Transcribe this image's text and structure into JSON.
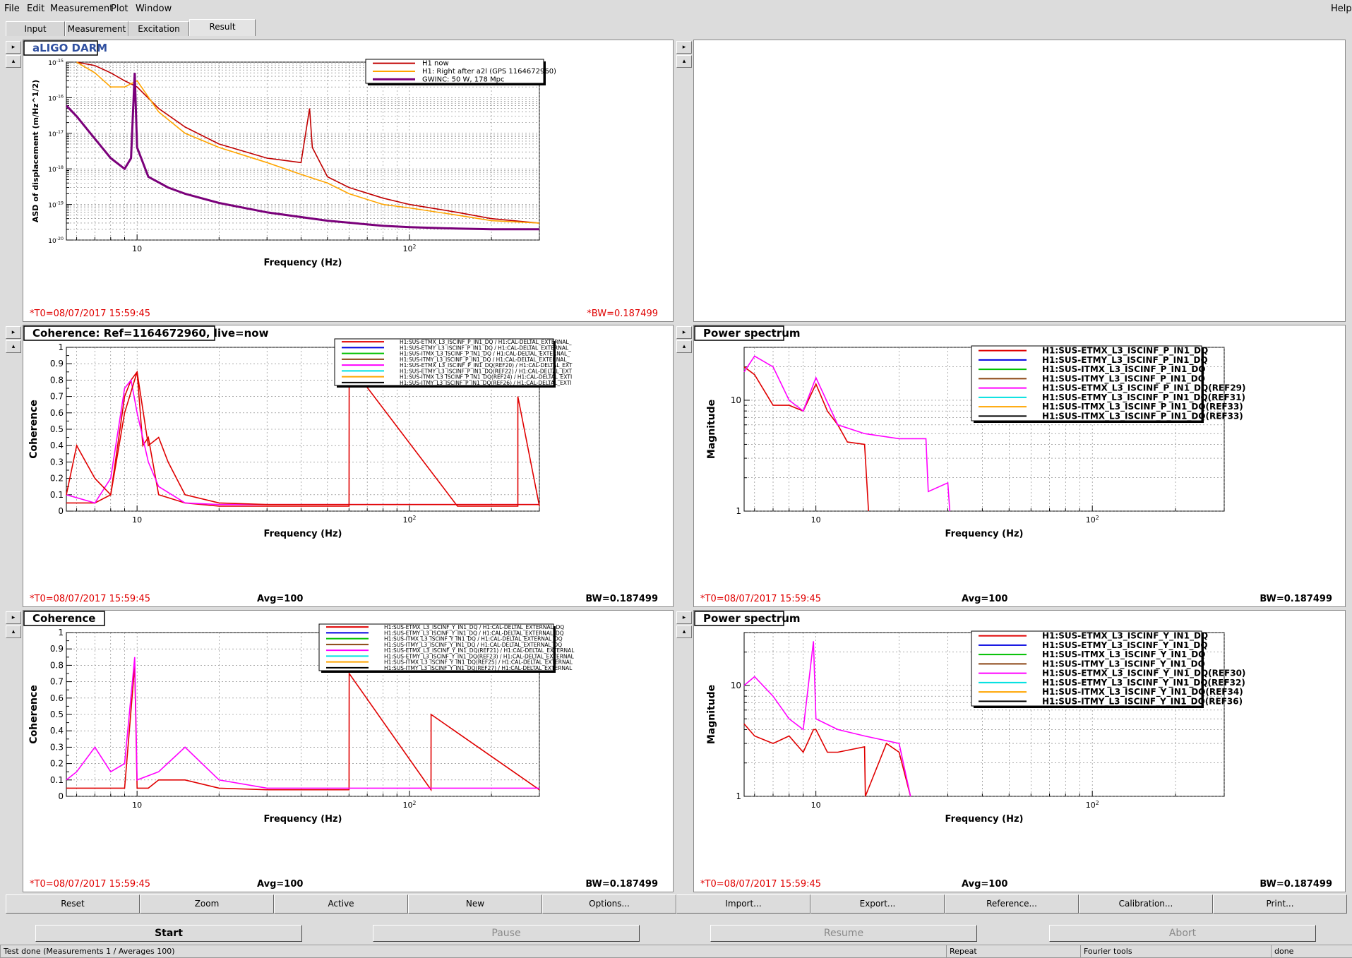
{
  "menu": {
    "file": "File",
    "edit": "Edit",
    "measurement": "Measurement",
    "plot": "Plot",
    "window": "Window",
    "help": "Help"
  },
  "tabs": [
    "Input",
    "Measurement",
    "Excitation",
    "Result"
  ],
  "panels": [
    {
      "title": "aLIGO DARM",
      "xlabel": "Frequency (Hz)",
      "ylabel": "ASD of displacement (m/Hz^1/2)",
      "t0": "*T0=08/07/2017 15:59:45",
      "avg": "",
      "bw": "*BW=0.187499",
      "legend": [
        "H1 now",
        "H1: Right after a2l (GPS 1164672960)",
        "GWINC: 50 W, 178 Mpc"
      ],
      "yticks": [
        "10^-15",
        "10^-16",
        "10^-17",
        "10^-18",
        "10^-19",
        "10^-20"
      ],
      "xticks": [
        "10",
        "10^2"
      ]
    },
    {
      "title": "Coherence: Ref=1164672960, live=now",
      "xlabel": "Frequency (Hz)",
      "ylabel": "Coherence",
      "t0": "*T0=08/07/2017 15:59:45",
      "avg": "Avg=100",
      "bw": "BW=0.187499",
      "legend": [
        "H1:SUS-ETMX_L3_ISCINF_P_IN1_DQ / H1:CAL-DELTAL_EXTERNAL_",
        "H1:SUS-ETMY_L3_ISCINF_P_IN1_DQ / H1:CAL-DELTAL_EXTERNAL_",
        "H1:SUS-ITMX_L3_ISCINF_P_IN1_DQ / H1:CAL-DELTAL_EXTERNAL_",
        "H1:SUS-ITMY_L3_ISCINF_P_IN1_DQ / H1:CAL-DELTAL_EXTERNAL_",
        "H1:SUS-ETMX_L3_ISCINF_P_IN1_DQ(REF20) / H1:CAL-DELTAL_EXT",
        "H1:SUS-ETMY_L3_ISCINF_P_IN1_DQ(REF22) / H1:CAL-DELTAL_EXT",
        "H1:SUS-ITMX_L3_ISCINF_P_IN1_DQ(REF24) / H1:CAL-DELTAL_EXTI",
        "H1:SUS-ITMY_L3_ISCINF_P_IN1_DQ(REF26) / H1:CAL-DELTAL_EXTI"
      ],
      "yticks": [
        "1",
        "0.9",
        "0.8",
        "0.7",
        "0.6",
        "0.5",
        "0.4",
        "0.3",
        "0.2",
        "0.1",
        "0"
      ],
      "xticks": [
        "10",
        "10^2"
      ]
    },
    {
      "title": "Power spectrum",
      "xlabel": "Frequency (Hz)",
      "ylabel": "Magnitude",
      "t0": "*T0=08/07/2017 15:59:45",
      "avg": "Avg=100",
      "bw": "BW=0.187499",
      "legend": [
        "H1:SUS-ETMX_L3_ISCINF_P_IN1_DQ",
        "H1:SUS-ETMY_L3_ISCINF_P_IN1_DQ",
        "H1:SUS-ITMX_L3_ISCINF_P_IN1_DQ",
        "H1:SUS-ITMY_L3_ISCINF_P_IN1_DQ",
        "H1:SUS-ETMX_L3_ISCINF_P_IN1_DQ(REF29)",
        "H1:SUS-ETMY_L3_ISCINF_P_IN1_DQ(REF31)",
        "H1:SUS-ITMX_L3_ISCINF_P_IN1_DQ(REF33)",
        "H1:SUS-ITMX_L3_ISCINF_P_IN1_DQ(REF33)"
      ],
      "yticks": [
        "10",
        "1"
      ],
      "xticks": [
        "10",
        "10^2"
      ]
    },
    {
      "title": "Coherence",
      "xlabel": "Frequency (Hz)",
      "ylabel": "Coherence",
      "t0": "*T0=08/07/2017 15:59:45",
      "avg": "Avg=100",
      "bw": "BW=0.187499",
      "legend": [
        "H1:SUS-ETMX_L3_ISCINF_Y_IN1_DQ / H1:CAL-DELTAL_EXTERNAL_DQ",
        "H1:SUS-ETMY_L3_ISCINF_Y_IN1_DQ / H1:CAL-DELTAL_EXTERNAL_DQ",
        "H1:SUS-ITMX_L3_ISCINF_Y_IN1_DQ / H1:CAL-DELTAL_EXTERNAL_DQ",
        "H1:SUS-ITMY_L3_ISCINF_Y_IN1_DQ / H1:CAL-DELTAL_EXTERNAL_DQ",
        "H1:SUS-ETMX_L3_ISCINF_Y_IN1_DQ(REF21) / H1:CAL-DELTAL_EXTERNAL",
        "H1:SUS-ETMY_L3_ISCINF_Y_IN1_DQ(REF23) / H1:CAL-DELTAL_EXTERNAL",
        "H1:SUS-ITMX_L3_ISCINF_Y_IN1_DQ(REF25) / H1:CAL-DELTAL_EXTERNAL",
        "H1:SUS-ITMY_L3_ISCINF_Y_IN1_DQ(REF27) / H1:CAL-DELTAL_EXTERNAL"
      ],
      "yticks": [
        "1",
        "0.9",
        "0.8",
        "0.7",
        "0.6",
        "0.5",
        "0.4",
        "0.3",
        "0.2",
        "0.1",
        "0"
      ],
      "xticks": [
        "10",
        "10^2"
      ]
    },
    {
      "title": "Power spectrum",
      "xlabel": "Frequency (Hz)",
      "ylabel": "Magnitude",
      "t0": "*T0=08/07/2017 15:59:45",
      "avg": "Avg=100",
      "bw": "BW=0.187499",
      "legend": [
        "H1:SUS-ETMX_L3_ISCINF_Y_IN1_DQ",
        "H1:SUS-ETMY_L3_ISCINF_Y_IN1_DQ",
        "H1:SUS-ITMX_L3_ISCINF_Y_IN1_DQ",
        "H1:SUS-ITMY_L3_ISCINF_Y_IN1_DQ",
        "H1:SUS-ETMX_L3_ISCINF_Y_IN1_DQ(REF30)",
        "H1:SUS-ETMY_L3_ISCINF_Y_IN1_DQ(REF32)",
        "H1:SUS-ITMX_L3_ISCINF_Y_IN1_DQ(REF34)",
        "H1:SUS-ITMY_L3_ISCINF_Y_IN1_DQ(REF36)"
      ],
      "yticks": [
        "10",
        "1"
      ],
      "xticks": [
        "10",
        "10^2"
      ]
    }
  ],
  "toolbar": [
    "Reset",
    "Zoom",
    "Active",
    "New",
    "Options...",
    "Import...",
    "Export...",
    "Reference...",
    "Calibration...",
    "Print..."
  ],
  "buttons": {
    "start": "Start",
    "pause": "Pause",
    "resume": "Resume",
    "abort": "Abort"
  },
  "status": {
    "message": "Test done (Measurements 1 / Averages 100)",
    "mode": "Repeat",
    "tool": "Fourier tools",
    "state": "done"
  },
  "colors": {
    "red": "#e00000",
    "blue": "#0000e0",
    "green": "#00c000",
    "brown": "#8b4513",
    "magenta": "#ff00ff",
    "cyan": "#00e0e0",
    "orange": "#ffa500",
    "black": "#000000",
    "purple": "#7a007a",
    "darkred": "#c00000",
    "titleblue": "#3050a0"
  },
  "chart_data": [
    {
      "type": "line",
      "title": "aLIGO DARM",
      "xlabel": "Frequency (Hz)",
      "ylabel": "ASD of displacement (m/Hz^1/2)",
      "xscale": "log",
      "yscale": "log",
      "xlim": [
        5.5,
        300
      ],
      "ylim": [
        1e-20,
        1e-15
      ],
      "grid": true,
      "legend_position": "top-right",
      "series": [
        {
          "name": "H1 now",
          "x": [
            6,
            7,
            8,
            9,
            10,
            12,
            15,
            20,
            30,
            40,
            43,
            44,
            50,
            60,
            80,
            100,
            150,
            200,
            300
          ],
          "y": [
            1e-15,
            8e-16,
            5e-16,
            3e-16,
            2e-16,
            5e-17,
            1.5e-17,
            5e-18,
            2e-18,
            1.5e-18,
            5e-17,
            4e-18,
            6e-19,
            3e-19,
            1.5e-19,
            1e-19,
            6e-20,
            4e-20,
            3e-20
          ]
        },
        {
          "name": "H1: Right after a2l (GPS 1164672960)",
          "x": [
            6,
            7,
            8,
            9,
            10,
            12,
            15,
            20,
            30,
            40,
            50,
            60,
            80,
            100,
            150,
            200,
            300
          ],
          "y": [
            1e-15,
            5e-16,
            2e-16,
            2e-16,
            3e-16,
            4e-17,
            1e-17,
            4e-18,
            1.5e-18,
            7e-19,
            4e-19,
            2e-19,
            1e-19,
            8e-20,
            5e-20,
            3.5e-20,
            3e-20
          ]
        },
        {
          "name": "GWINC: 50 W, 178 Mpc",
          "x": [
            5.5,
            6,
            7,
            8,
            9,
            9.5,
            9.8,
            10,
            11,
            13,
            15,
            20,
            30,
            50,
            80,
            100,
            150,
            200,
            300
          ],
          "y": [
            6e-17,
            3e-17,
            7e-18,
            2e-18,
            1e-18,
            2e-18,
            5e-16,
            4e-18,
            6e-19,
            3e-19,
            2e-19,
            1.1e-19,
            6e-20,
            3.5e-20,
            2.5e-20,
            2.3e-20,
            2.1e-20,
            2e-20,
            2e-20
          ]
        }
      ]
    },
    {
      "type": "line",
      "title": "Coherence: Ref=1164672960, live=now",
      "xlabel": "Frequency (Hz)",
      "ylabel": "Coherence",
      "xscale": "log",
      "xlim": [
        5.5,
        300
      ],
      "ylim": [
        0,
        1
      ],
      "grid": true,
      "legend_position": "top-right",
      "series": [
        {
          "name": "H1:SUS-ETMX_L3_ISCINF_P_IN1_DQ / H1:CAL-DELTAL_EXTERNAL_",
          "x": [
            5.5,
            7,
            8,
            9,
            9.5,
            10,
            10.5,
            11,
            12,
            15,
            20,
            30,
            60,
            60.1,
            150,
            250,
            250.1,
            300
          ],
          "y": [
            0.05,
            0.05,
            0.1,
            0.7,
            0.8,
            0.85,
            0.4,
            0.45,
            0.1,
            0.05,
            0.03,
            0.03,
            0.03,
            0.9,
            0.03,
            0.03,
            0.7,
            0.03
          ]
        },
        {
          "name": "H1:SUS-ETMY_L3_ISCINF_P_IN1_DQ / H1:CAL-DELTAL_EXTERNAL_",
          "x": [
            5.5,
            7,
            8,
            9,
            9.5,
            10,
            11,
            12,
            15,
            20,
            30,
            60,
            150,
            300
          ],
          "y": [
            0.1,
            0.05,
            0.2,
            0.75,
            0.8,
            0.6,
            0.3,
            0.15,
            0.05,
            0.04,
            0.04,
            0.04,
            0.04,
            0.04
          ]
        },
        {
          "name": "H1:SUS-ETMX_L3_ISCINF_P_IN1_DQ(REF20) / H1:CAL-DELTAL_EXT",
          "x": [
            5.5,
            6,
            7,
            8,
            9,
            10,
            11,
            12,
            13,
            15,
            20,
            30,
            60,
            300
          ],
          "y": [
            0.1,
            0.4,
            0.2,
            0.1,
            0.6,
            0.85,
            0.4,
            0.45,
            0.3,
            0.1,
            0.05,
            0.04,
            0.04,
            0.04
          ]
        }
      ]
    },
    {
      "type": "line",
      "title": "Power spectrum",
      "xlabel": "Frequency (Hz)",
      "ylabel": "Magnitude",
      "xscale": "log",
      "yscale": "log",
      "xlim": [
        5.5,
        300
      ],
      "ylim": [
        1,
        30
      ],
      "grid": true,
      "legend_position": "top-right",
      "series": [
        {
          "name": "H1:SUS-ETMX_L3_ISCINF_P_IN1_DQ",
          "x": [
            5.5,
            6,
            7,
            8,
            9,
            10,
            11,
            12,
            13,
            15,
            15.5
          ],
          "y": [
            20,
            17,
            9,
            9,
            8,
            14,
            8,
            6,
            4.2,
            4,
            1
          ]
        },
        {
          "name": "H1:SUS-ETMX_L3_ISCINF_P_IN1_DQ(REF29)",
          "x": [
            5.5,
            6,
            7,
            8,
            9,
            10,
            12,
            15,
            20,
            25,
            25.5,
            30,
            30.5
          ],
          "y": [
            18,
            25,
            20,
            10,
            8,
            16,
            6,
            5,
            4.5,
            4.5,
            1.5,
            1.8,
            1
          ]
        }
      ]
    },
    {
      "type": "line",
      "title": "Coherence",
      "xlabel": "Frequency (Hz)",
      "ylabel": "Coherence",
      "xscale": "log",
      "xlim": [
        5.5,
        300
      ],
      "ylim": [
        0,
        1
      ],
      "grid": true,
      "legend_position": "top-right",
      "series": [
        {
          "name": "H1:SUS-ETMX_L3_ISCINF_Y_IN1_DQ / H1:CAL-DELTAL_EXTERNAL_DQ",
          "x": [
            5.5,
            7,
            8,
            9,
            9.8,
            10,
            11,
            12,
            15,
            20,
            30,
            60,
            60.1,
            120,
            120.1,
            300
          ],
          "y": [
            0.05,
            0.05,
            0.05,
            0.05,
            0.8,
            0.05,
            0.05,
            0.1,
            0.1,
            0.05,
            0.04,
            0.04,
            0.75,
            0.04,
            0.5,
            0.04
          ]
        },
        {
          "name": "H1:SUS-ETMX_L3_ISCINF_Y_IN1_DQ(REF21) / H1:CAL-DELTAL_EXTERNAL",
          "x": [
            5.5,
            6,
            7,
            8,
            9,
            9.8,
            10,
            12,
            15,
            20,
            30,
            300
          ],
          "y": [
            0.1,
            0.15,
            0.3,
            0.15,
            0.2,
            0.85,
            0.1,
            0.15,
            0.3,
            0.1,
            0.05,
            0.05
          ]
        }
      ]
    },
    {
      "type": "line",
      "title": "Power spectrum",
      "xlabel": "Frequency (Hz)",
      "ylabel": "Magnitude",
      "xscale": "log",
      "yscale": "log",
      "xlim": [
        5.5,
        300
      ],
      "ylim": [
        1,
        30
      ],
      "grid": true,
      "legend_position": "top-right",
      "series": [
        {
          "name": "H1:SUS-ETMX_L3_ISCINF_Y_IN1_DQ",
          "x": [
            5.5,
            6,
            7,
            8,
            9,
            9.8,
            10,
            11,
            12,
            15,
            15.1,
            18,
            20,
            22
          ],
          "y": [
            4.5,
            3.5,
            3,
            3.5,
            2.5,
            4,
            4,
            2.5,
            2.5,
            2.8,
            1,
            3,
            2.5,
            1
          ]
        },
        {
          "name": "H1:SUS-ETMX_L3_ISCINF_Y_IN1_DQ(REF30)",
          "x": [
            5.5,
            6,
            7,
            8,
            9,
            9.8,
            10,
            12,
            15,
            20,
            22
          ],
          "y": [
            10,
            12,
            8,
            5,
            4,
            25,
            5,
            4,
            3.5,
            3,
            1
          ]
        }
      ]
    }
  ]
}
